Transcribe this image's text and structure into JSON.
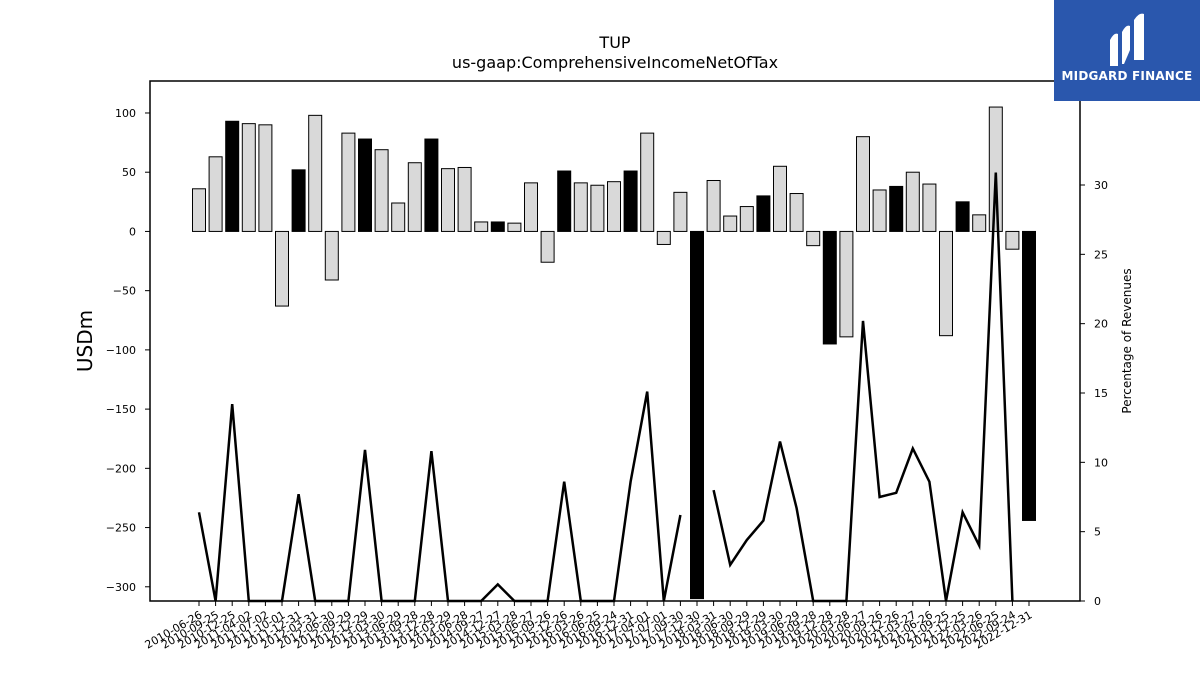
{
  "chart_data": {
    "type": "bar",
    "title": "TUP",
    "subtitle": "us-gaap:ComprehensiveIncomeNetOfTax",
    "ylabel": "USDm",
    "y2label": "Percentage of Revenues",
    "ylim": [
      -312,
      127
    ],
    "y2lim": [
      0,
      37.5
    ],
    "yticks": [
      100,
      50,
      0,
      -50,
      -100,
      -150,
      -200,
      -250,
      -300
    ],
    "y2ticks": [
      0,
      5,
      10,
      15,
      20,
      25,
      30
    ],
    "x_tick_labels": [
      "2010-06-26",
      "2010-09-25",
      "2010-12-25",
      "2011-04-02",
      "2011-07-02",
      "2011-10-01",
      "2011-12-31",
      "2012-03-31",
      "2012-06-30",
      "2012-09-29",
      "2012-12-29",
      "2013-03-30",
      "2013-06-29",
      "2013-09-28",
      "2013-12-28",
      "2014-03-29",
      "2014-06-28",
      "2014-09-27",
      "2014-12-27",
      "2015-03-28",
      "2015-06-27",
      "2015-09-26",
      "2015-12-26",
      "2016-03-26",
      "2016-06-25",
      "2016-09-24",
      "2016-12-31",
      "2017-04-01",
      "2017-07-01",
      "2017-09-30",
      "2017-12-30",
      "2018-03-31",
      "2018-06-30",
      "2018-09-29",
      "2018-12-29",
      "2019-03-30",
      "2019-06-29",
      "2019-09-28",
      "2019-12-28",
      "2020-03-28",
      "2020-06-27",
      "2020-09-26",
      "2020-12-26",
      "2021-03-27",
      "2021-06-26",
      "2021-09-25",
      "2021-12-25",
      "2022-03-26",
      "2022-06-25",
      "2022-09-24",
      "2022-12-31"
    ],
    "values": [
      36,
      63,
      93,
      91,
      90,
      -63,
      52,
      98,
      -41,
      83,
      78,
      69,
      24,
      58,
      78,
      53,
      54,
      8,
      8,
      7,
      41,
      -26,
      51,
      41,
      39,
      42,
      51,
      83,
      -11,
      33,
      -310,
      43,
      13,
      21,
      30,
      55,
      32,
      -12,
      -95,
      -89,
      80,
      35,
      38,
      50,
      40,
      -88,
      25,
      14,
      105,
      -15,
      -244
    ],
    "highlight": [
      false,
      false,
      true,
      false,
      false,
      false,
      true,
      false,
      false,
      false,
      true,
      false,
      false,
      false,
      true,
      false,
      false,
      false,
      true,
      false,
      false,
      false,
      true,
      false,
      false,
      false,
      true,
      false,
      false,
      false,
      true,
      false,
      false,
      false,
      true,
      false,
      false,
      false,
      true,
      false,
      false,
      false,
      true,
      false,
      false,
      false,
      true,
      false,
      false,
      false,
      true
    ],
    "pct_series": {
      "name": "Percentage of Revenues",
      "values": [
        6.4,
        0,
        14.2,
        0,
        0,
        0,
        7.7,
        0,
        0,
        0,
        10.9,
        0,
        0,
        0,
        10.8,
        0,
        0,
        0,
        1.2,
        0,
        0,
        0,
        8.6,
        0,
        0,
        0,
        8.6,
        15.1,
        0,
        6.2,
        null,
        8.0,
        2.6,
        4.4,
        5.8,
        11.5,
        6.7,
        0,
        0,
        0,
        20.2,
        7.5,
        7.8,
        11.0,
        8.6,
        0,
        6.4,
        4.0,
        30.9,
        0,
        null
      ]
    },
    "colors": {
      "bar_fill": "#d9d9d9",
      "bar_highlight": "#000000",
      "bar_edge": "#000000",
      "line": "#000000"
    },
    "grid": false,
    "legend": "none"
  },
  "logo": {
    "text": "MIDGARD FINANCE",
    "color": "#2a57ad",
    "icon": "midgard-logo-mark"
  }
}
